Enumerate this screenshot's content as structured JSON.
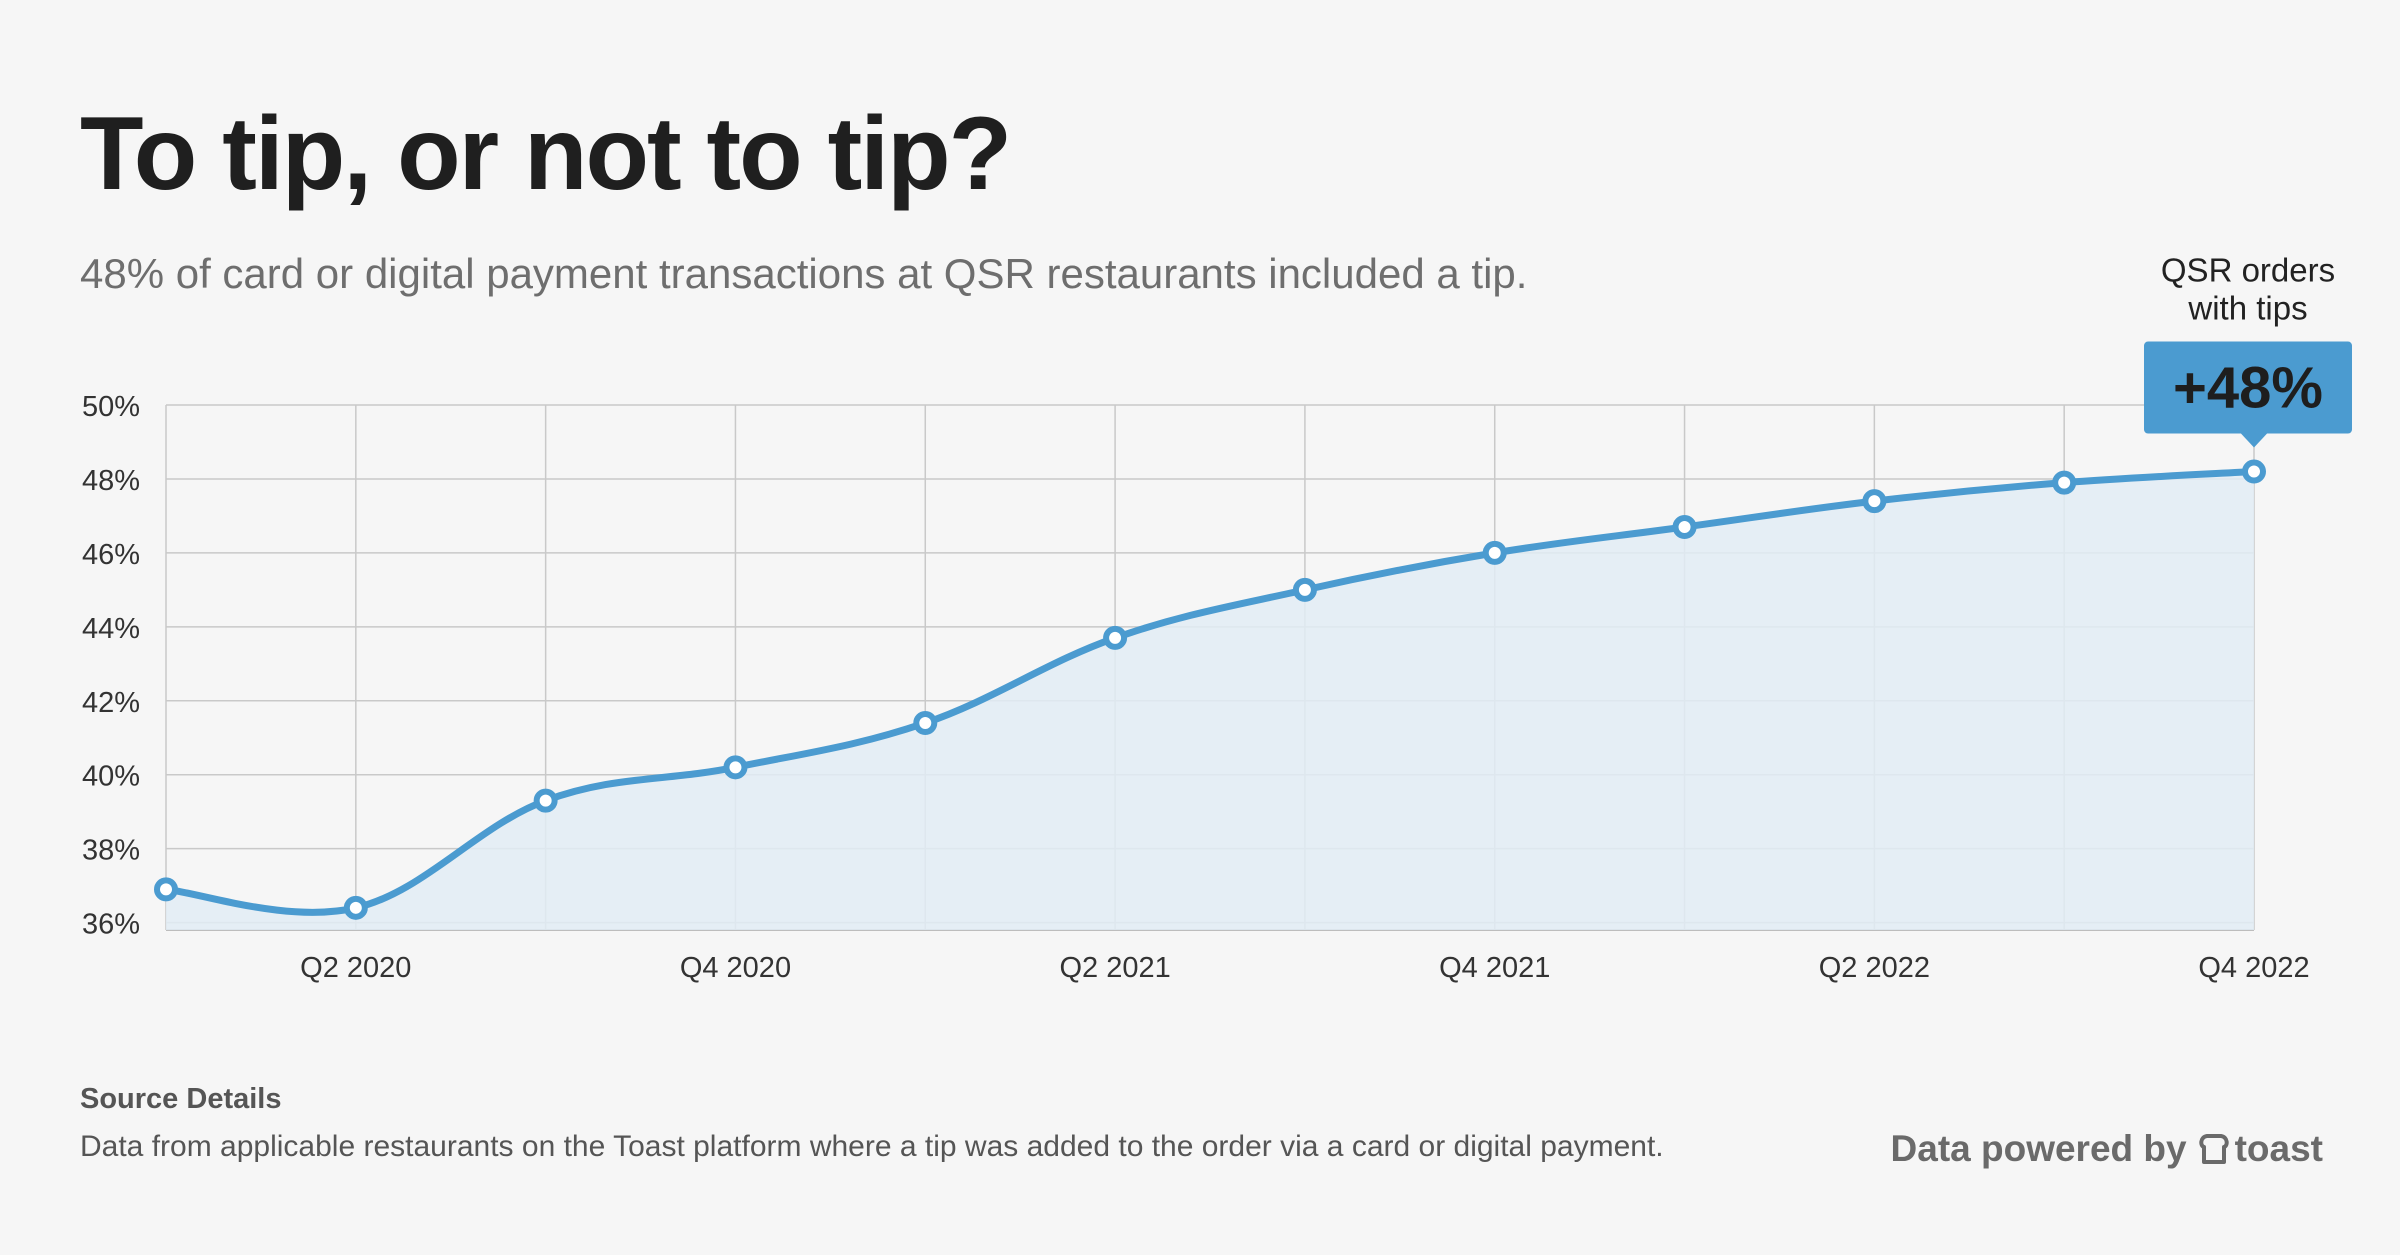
{
  "header": {
    "title": "To tip, or not to tip?",
    "subtitle": "48% of card or digital payment transactions at QSR restaurants included a tip."
  },
  "chart_data": {
    "type": "area",
    "x": [
      "Q1 2020",
      "Q2 2020",
      "Q3 2020",
      "Q4 2020",
      "Q1 2021",
      "Q2 2021",
      "Q3 2021",
      "Q4 2021",
      "Q1 2022",
      "Q2 2022",
      "Q3 2022",
      "Q4 2022"
    ],
    "x_tick_labels": [
      "",
      "Q2 2020",
      "",
      "Q4 2020",
      "",
      "Q2 2021",
      "",
      "Q4 2021",
      "",
      "Q2 2022",
      "",
      "Q4 2022"
    ],
    "series": [
      {
        "values": [
          36.9,
          36.4,
          39.3,
          40.2,
          41.4,
          43.7,
          45.0,
          46.0,
          46.7,
          47.4,
          47.9,
          48.2
        ]
      }
    ],
    "ylim": [
      35.8,
      50
    ],
    "y_ticks": [
      36,
      38,
      40,
      42,
      44,
      46,
      48,
      50
    ],
    "y_tick_labels": [
      "36%",
      "38%",
      "40%",
      "42%",
      "44%",
      "46%",
      "48%",
      "50%"
    ],
    "grid": true,
    "callout": {
      "label_line1": "QSR orders",
      "label_line2": "with tips",
      "value": "+48%"
    },
    "colors": {
      "line": "#4b9bd0",
      "fill": "#e2ecf4",
      "callout": "#4b9bd0",
      "grid": "#c9c9c9"
    }
  },
  "footer": {
    "source_heading": "Source Details",
    "source_text": "Data from applicable restaurants on the Toast platform where a tip was added to the order via a card or digital payment.",
    "powered_prefix": "Data powered by",
    "brand": "toast",
    "brand_icon": "toast-bread-icon"
  }
}
